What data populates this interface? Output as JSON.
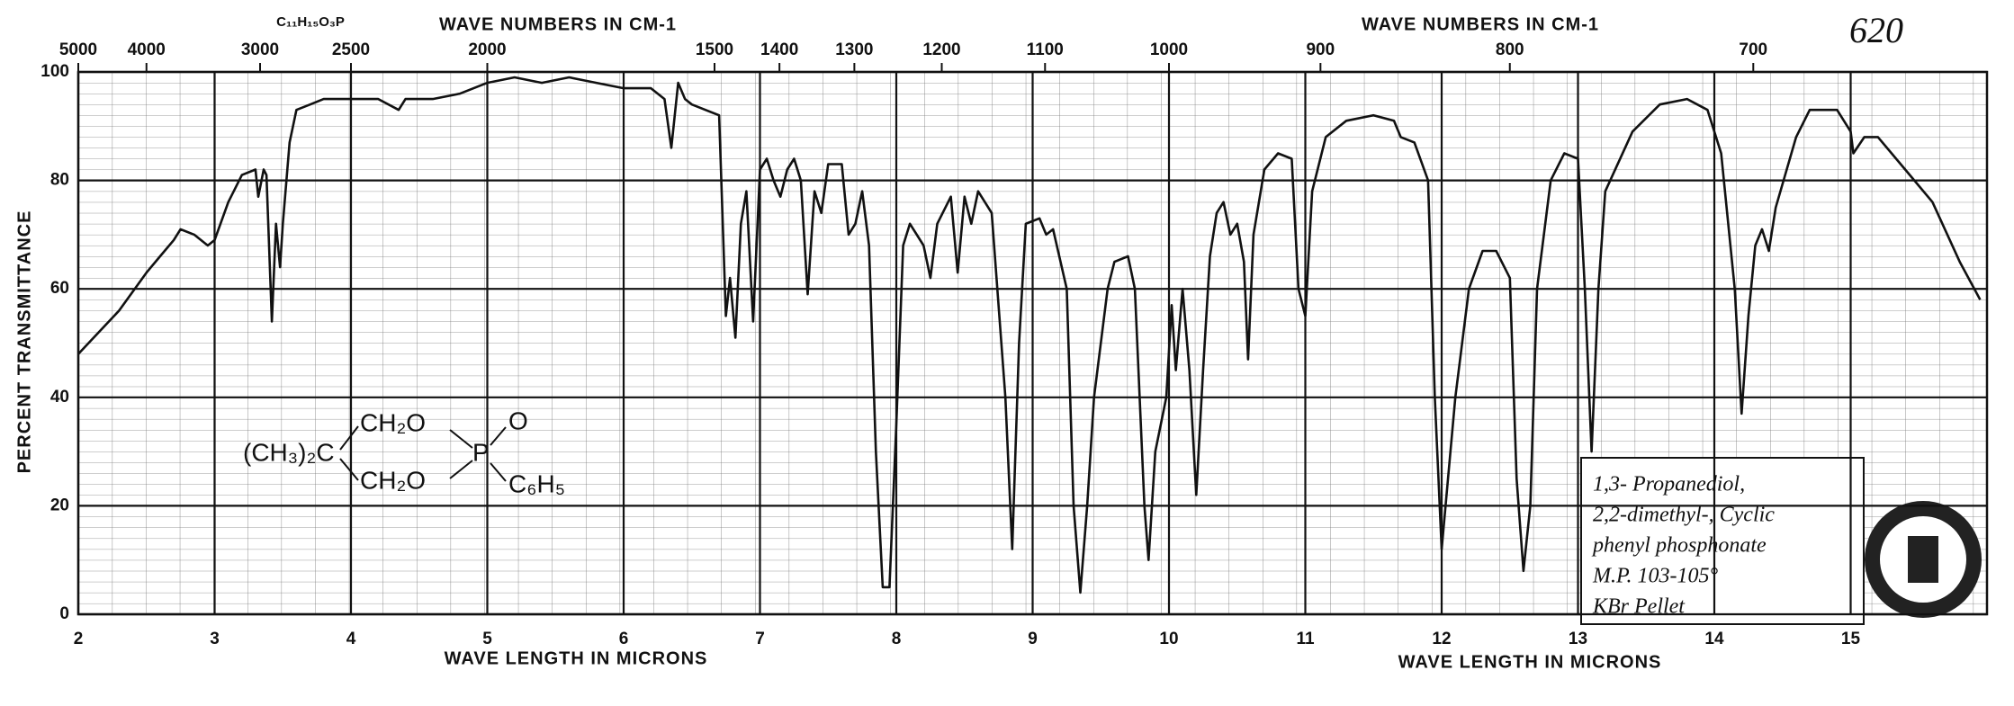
{
  "chart_data": {
    "type": "line",
    "formula": "C₁₁H₁₅O₃P",
    "top_axis_label": "WAVE NUMBERS IN CM-1",
    "top_axis_label_right": "WAVE NUMBERS IN CM-1",
    "x_label": "WAVE LENGTH IN MICRONS",
    "x_label_right": "WAVE LENGTH IN MICRONS",
    "y_label": "PERCENT TRANSMITTANCE",
    "spectrum_number": "620",
    "note": [
      "1,3- Propanediol,",
      "2,2-dimethyl-, Cyclic",
      "phenyl phosphonate",
      "M.P. 103-105°",
      "KBr Pellet"
    ],
    "structure": [
      "(CH₃)₂C",
      "CH₂O",
      "CH₂O",
      "P",
      "O",
      "C₆H₅"
    ],
    "xlim": [
      2,
      16
    ],
    "xticks": [
      2,
      3,
      4,
      5,
      6,
      7,
      8,
      9,
      10,
      11,
      12,
      13,
      14,
      15
    ],
    "x2ticks": [
      5000,
      4000,
      3000,
      2500,
      2000,
      1500,
      1400,
      1300,
      1200,
      1100,
      1000,
      900,
      800,
      700
    ],
    "ylim": [
      0,
      100
    ],
    "yticks": [
      0,
      20,
      40,
      60,
      80,
      100
    ],
    "grid": true,
    "color": "#111111",
    "x": [
      2.0,
      2.3,
      2.5,
      2.6,
      2.7,
      2.75,
      2.85,
      2.95,
      3.0,
      3.1,
      3.2,
      3.3,
      3.32,
      3.36,
      3.38,
      3.42,
      3.45,
      3.48,
      3.5,
      3.55,
      3.6,
      3.7,
      3.8,
      4.0,
      4.2,
      4.35,
      4.4,
      4.6,
      4.8,
      5.0,
      5.2,
      5.4,
      5.6,
      5.8,
      6.0,
      6.2,
      6.3,
      6.35,
      6.4,
      6.45,
      6.5,
      6.6,
      6.7,
      6.75,
      6.78,
      6.82,
      6.86,
      6.9,
      6.95,
      7.0,
      7.05,
      7.1,
      7.15,
      7.2,
      7.25,
      7.3,
      7.35,
      7.4,
      7.45,
      7.5,
      7.6,
      7.65,
      7.7,
      7.75,
      7.8,
      7.85,
      7.9,
      7.95,
      8.0,
      8.05,
      8.1,
      8.2,
      8.25,
      8.3,
      8.4,
      8.45,
      8.5,
      8.55,
      8.6,
      8.7,
      8.8,
      8.85,
      8.9,
      8.95,
      9.05,
      9.1,
      9.15,
      9.25,
      9.3,
      9.35,
      9.4,
      9.45,
      9.55,
      9.6,
      9.7,
      9.75,
      9.82,
      9.85,
      9.9,
      9.98,
      10.02,
      10.05,
      10.1,
      10.15,
      10.2,
      10.25,
      10.3,
      10.35,
      10.4,
      10.45,
      10.5,
      10.55,
      10.58,
      10.62,
      10.7,
      10.8,
      10.9,
      10.95,
      11.0,
      11.05,
      11.15,
      11.3,
      11.5,
      11.65,
      11.7,
      11.8,
      11.9,
      11.95,
      12.0,
      12.1,
      12.2,
      12.3,
      12.4,
      12.5,
      12.55,
      12.6,
      12.65,
      12.7,
      12.8,
      12.9,
      13.0,
      13.05,
      13.1,
      13.15,
      13.2,
      13.4,
      13.6,
      13.8,
      13.95,
      14.05,
      14.15,
      14.2,
      14.25,
      14.3,
      14.35,
      14.4,
      14.45,
      14.6,
      14.7,
      14.9,
      15.0,
      15.02,
      15.1,
      15.2,
      15.4,
      15.6,
      15.8,
      15.95
    ],
    "values": [
      48,
      56,
      63,
      66,
      69,
      71,
      70,
      68,
      69,
      76,
      81,
      82,
      77,
      82,
      81,
      54,
      72,
      64,
      72,
      87,
      93,
      94,
      95,
      95,
      95,
      93,
      95,
      95,
      96,
      98,
      99,
      98,
      99,
      98,
      97,
      97,
      95,
      86,
      98,
      95,
      94,
      93,
      92,
      55,
      62,
      51,
      72,
      78,
      54,
      82,
      84,
      80,
      77,
      82,
      84,
      80,
      59,
      78,
      74,
      83,
      83,
      70,
      72,
      78,
      68,
      30,
      5,
      5,
      35,
      68,
      72,
      68,
      62,
      72,
      77,
      63,
      77,
      72,
      78,
      74,
      40,
      12,
      50,
      72,
      73,
      70,
      71,
      60,
      20,
      4,
      20,
      40,
      60,
      65,
      66,
      60,
      20,
      10,
      30,
      40,
      57,
      45,
      60,
      45,
      22,
      45,
      66,
      74,
      76,
      70,
      72,
      65,
      47,
      70,
      82,
      85,
      84,
      60,
      55,
      78,
      88,
      91,
      92,
      91,
      88,
      87,
      80,
      40,
      12,
      40,
      60,
      67,
      67,
      62,
      25,
      8,
      20,
      60,
      80,
      85,
      84,
      60,
      30,
      60,
      78,
      89,
      94,
      95,
      93,
      85,
      60,
      37,
      55,
      68,
      71,
      67,
      75,
      88,
      93,
      93,
      89,
      85,
      88,
      88,
      82,
      76,
      65,
      58
    ]
  }
}
